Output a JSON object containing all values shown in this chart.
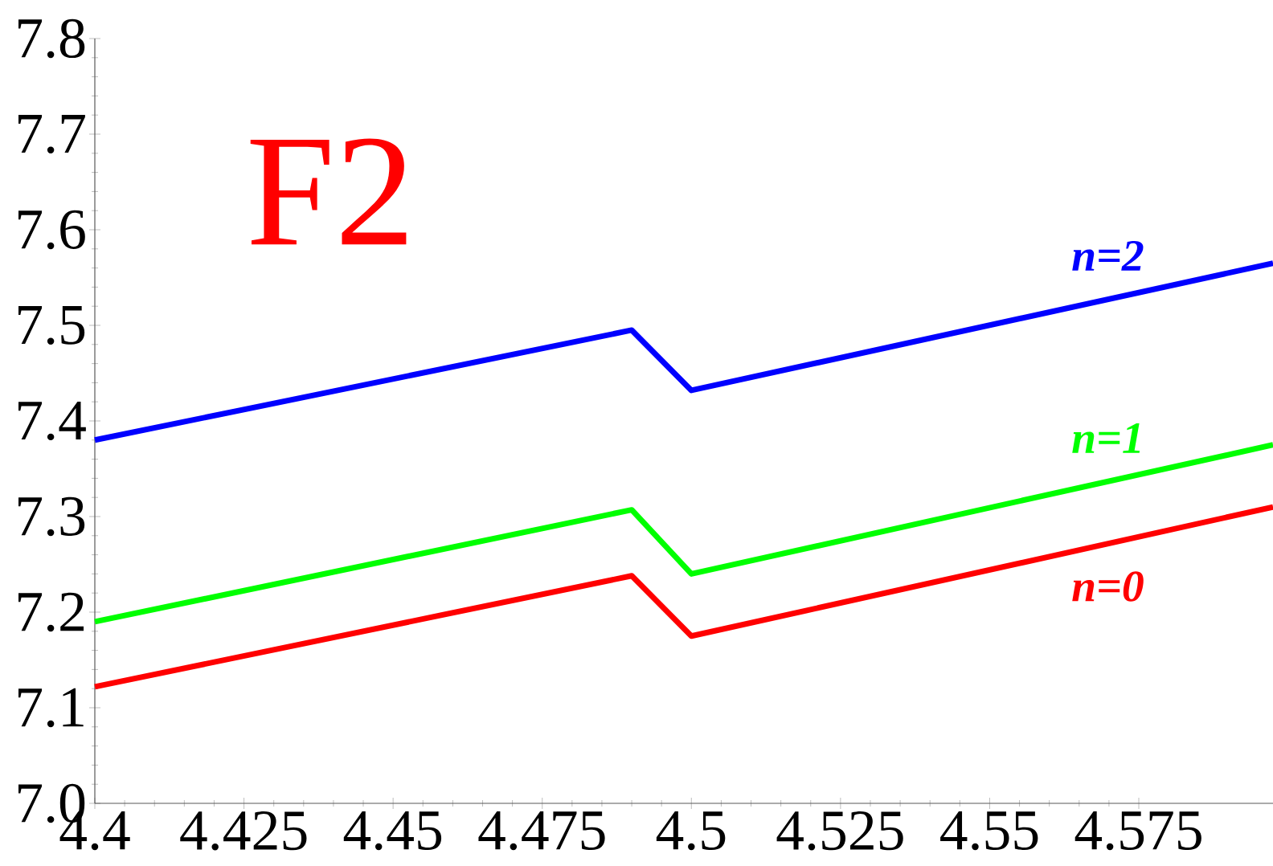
{
  "chart_data": {
    "type": "line",
    "x": [
      4.4,
      4.49,
      4.5,
      4.5975
    ],
    "series": [
      {
        "name": "n=0",
        "color": "#ff0000",
        "values": [
          7.122,
          7.238,
          7.175,
          7.31
        ]
      },
      {
        "name": "n=1",
        "color": "#00ff00",
        "values": [
          7.19,
          7.307,
          7.24,
          7.375
        ]
      },
      {
        "name": "n=2",
        "color": "#0000ff",
        "values": [
          7.38,
          7.495,
          7.432,
          7.565
        ]
      }
    ],
    "annotations": [
      "F2"
    ],
    "xlim": [
      4.4,
      4.5975
    ],
    "ylim": [
      7.0,
      7.8
    ],
    "xticks": [
      4.4,
      4.425,
      4.45,
      4.475,
      4.5,
      4.525,
      4.55,
      4.575
    ],
    "yticks": [
      {
        "value": 7.0,
        "label": "7.0"
      },
      7.1,
      7.2,
      7.3,
      7.4,
      7.5,
      7.6,
      7.7,
      7.8
    ],
    "grid": false,
    "marker": "none",
    "line_style": "solid"
  }
}
